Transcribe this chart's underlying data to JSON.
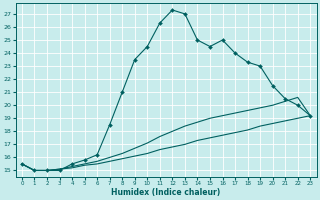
{
  "xlabel": "Humidex (Indice chaleur)",
  "bg_color": "#c8ecec",
  "grid_color": "#ffffff",
  "line_color": "#006060",
  "xlim": [
    -0.5,
    23.5
  ],
  "ylim": [
    14.5,
    27.8
  ],
  "xticks": [
    0,
    1,
    2,
    3,
    4,
    5,
    6,
    7,
    8,
    9,
    10,
    11,
    12,
    13,
    14,
    15,
    16,
    17,
    18,
    19,
    20,
    21,
    22,
    23
  ],
  "yticks": [
    15,
    16,
    17,
    18,
    19,
    20,
    21,
    22,
    23,
    24,
    25,
    26,
    27
  ],
  "line1_x": [
    0,
    1,
    2,
    3,
    4,
    5,
    6,
    7,
    8,
    9,
    10,
    11,
    12,
    13,
    14,
    15,
    16,
    17,
    18,
    19,
    20,
    21,
    22,
    23
  ],
  "line1_y": [
    15.5,
    15.0,
    15.0,
    15.0,
    15.5,
    15.8,
    16.2,
    18.5,
    21.0,
    23.5,
    24.5,
    26.3,
    27.3,
    27.0,
    25.0,
    24.5,
    25.0,
    24.0,
    23.3,
    23.0,
    21.5,
    20.5,
    20.0,
    19.2
  ],
  "line2_x": [
    0,
    1,
    2,
    3,
    4,
    5,
    6,
    7,
    8,
    9,
    10,
    11,
    12,
    13,
    14,
    15,
    16,
    17,
    18,
    19,
    20,
    21,
    22,
    23
  ],
  "line2_y": [
    15.5,
    15.0,
    15.0,
    15.1,
    15.3,
    15.5,
    15.7,
    16.0,
    16.3,
    16.7,
    17.1,
    17.6,
    18.0,
    18.4,
    18.7,
    19.0,
    19.2,
    19.4,
    19.6,
    19.8,
    20.0,
    20.3,
    20.6,
    19.2
  ],
  "line3_x": [
    0,
    1,
    2,
    3,
    4,
    5,
    6,
    7,
    8,
    9,
    10,
    11,
    12,
    13,
    14,
    15,
    16,
    17,
    18,
    19,
    20,
    21,
    22,
    23
  ],
  "line3_y": [
    15.5,
    15.0,
    15.0,
    15.1,
    15.2,
    15.4,
    15.5,
    15.7,
    15.9,
    16.1,
    16.3,
    16.6,
    16.8,
    17.0,
    17.3,
    17.5,
    17.7,
    17.9,
    18.1,
    18.4,
    18.6,
    18.8,
    19.0,
    19.2
  ]
}
